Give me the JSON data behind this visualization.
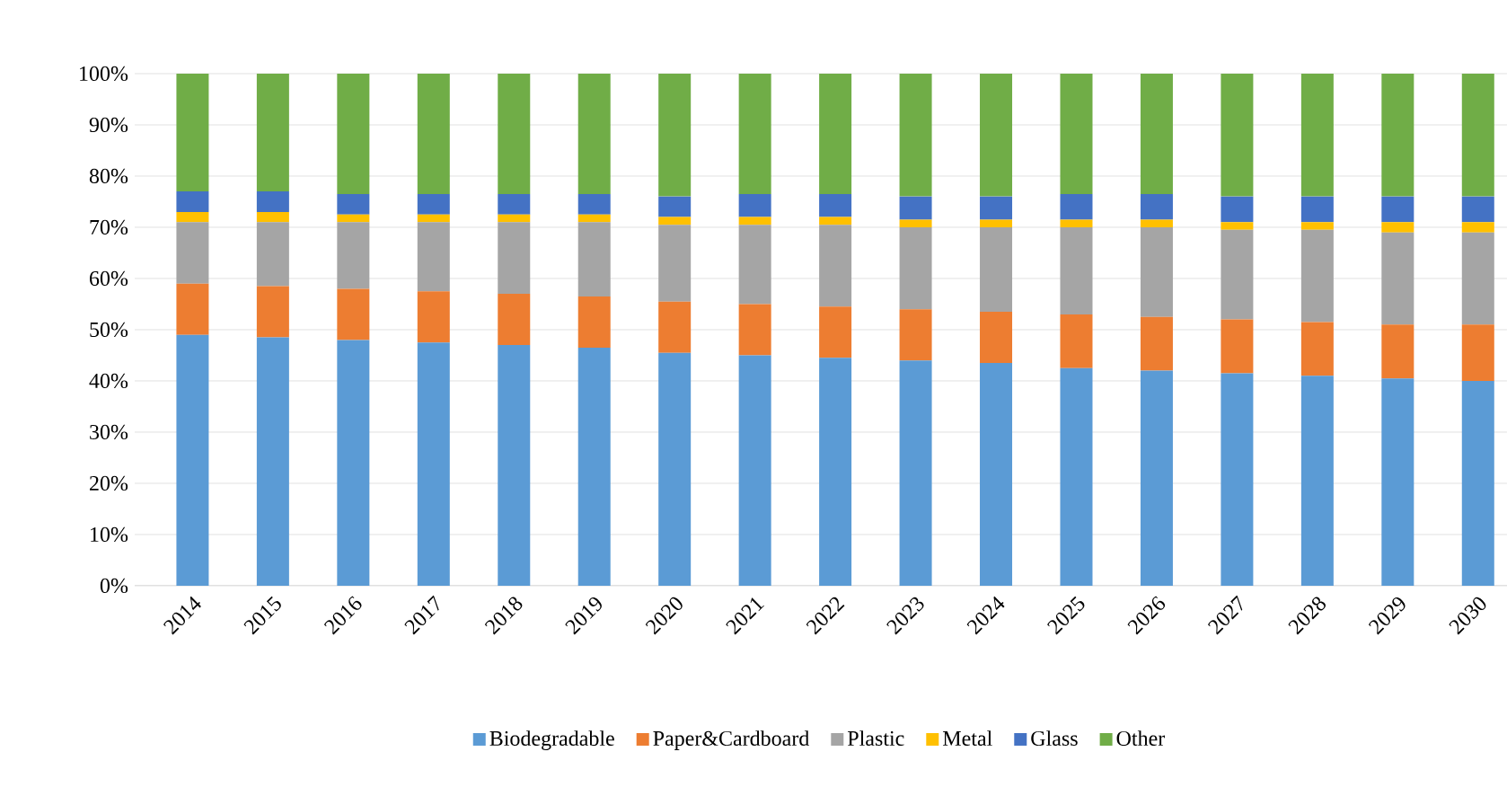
{
  "chart_data": {
    "type": "bar",
    "stacked": true,
    "categories": [
      "2014",
      "2015",
      "2016",
      "2017",
      "2018",
      "2019",
      "2020",
      "2021",
      "2022",
      "2023",
      "2024",
      "2025",
      "2026",
      "2027",
      "2028",
      "2029",
      "2030"
    ],
    "series": [
      {
        "name": "Biodegradable",
        "color": "#5b9bd5",
        "values": [
          49,
          48.5,
          48,
          47.5,
          47,
          46.5,
          45.5,
          45,
          44.5,
          44,
          43.5,
          42.5,
          42,
          41.5,
          41,
          40.5,
          40
        ]
      },
      {
        "name": "Paper&Cardboard",
        "color": "#ed7d31",
        "values": [
          10,
          10,
          10,
          10,
          10,
          10,
          10,
          10,
          10,
          10,
          10,
          10.5,
          10.5,
          10.5,
          10.5,
          10.5,
          11
        ]
      },
      {
        "name": "Plastic",
        "color": "#a5a5a5",
        "values": [
          12,
          12.5,
          13,
          13.5,
          14,
          14.5,
          15,
          15.5,
          16,
          16,
          16.5,
          17,
          17.5,
          17.5,
          18,
          18,
          18
        ]
      },
      {
        "name": "Metal",
        "color": "#ffc000",
        "values": [
          2,
          2,
          1.5,
          1.5,
          1.5,
          1.5,
          1.5,
          1.5,
          1.5,
          1.5,
          1.5,
          1.5,
          1.5,
          1.5,
          1.5,
          2,
          2
        ]
      },
      {
        "name": "Glass",
        "color": "#4472c4",
        "values": [
          4,
          4,
          4,
          4,
          4,
          4,
          4,
          4.5,
          4.5,
          4.5,
          4.5,
          5,
          5,
          5,
          5,
          5,
          5
        ]
      },
      {
        "name": "Other",
        "color": "#70ad47",
        "values": [
          23,
          23,
          23.5,
          23.5,
          23.5,
          23.5,
          24,
          23.5,
          23.5,
          24,
          24,
          23.5,
          23.5,
          24,
          24,
          24,
          24
        ]
      }
    ],
    "ylim": [
      0,
      100
    ],
    "yticks": [
      {
        "value": 0,
        "label": "0%"
      },
      {
        "value": 10,
        "label": "10%"
      },
      {
        "value": 20,
        "label": "20%"
      },
      {
        "value": 30,
        "label": "30%"
      },
      {
        "value": 40,
        "label": "40%"
      },
      {
        "value": 50,
        "label": "50%"
      },
      {
        "value": 60,
        "label": "60%"
      },
      {
        "value": 70,
        "label": "70%"
      },
      {
        "value": 80,
        "label": "80%"
      },
      {
        "value": 90,
        "label": "90%"
      },
      {
        "value": 100,
        "label": "100%"
      }
    ],
    "grid": "y",
    "legend": "bottom"
  }
}
